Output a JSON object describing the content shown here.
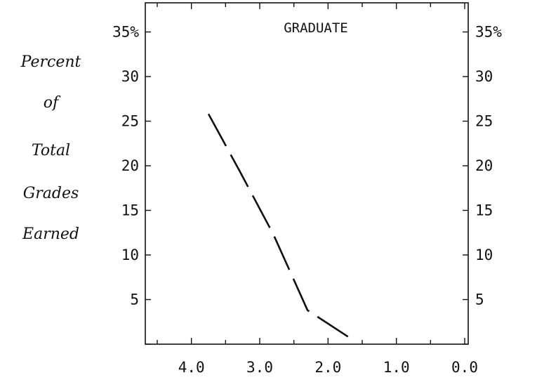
{
  "chart_data": {
    "type": "line",
    "title": "GRADUATE",
    "ylabel_lines": [
      "Percent",
      "of",
      "Total",
      "Grades",
      "Earned"
    ],
    "xlabel": "",
    "xlim": [
      4.5,
      0.0
    ],
    "ylim": [
      0,
      40
    ],
    "x_ticks": [
      {
        "value": 4.0,
        "label": "4.0"
      },
      {
        "value": 3.0,
        "label": "3.0"
      },
      {
        "value": 2.0,
        "label": "2.0"
      },
      {
        "value": 1.0,
        "label": "1.0"
      },
      {
        "value": 0.0,
        "label": "0.0"
      }
    ],
    "y_ticks": [
      {
        "value": 5,
        "label": "5"
      },
      {
        "value": 10,
        "label": "10"
      },
      {
        "value": 15,
        "label": "15"
      },
      {
        "value": 20,
        "label": "20"
      },
      {
        "value": 25,
        "label": "25"
      },
      {
        "value": 30,
        "label": "30"
      },
      {
        "value": 35,
        "label": "35%"
      }
    ],
    "series": [
      {
        "line_style": "dashed",
        "color": "#111111",
        "x": [
          3.75,
          3.3,
          2.8,
          2.3,
          1.7
        ],
        "y": [
          25.8,
          19.5,
          12.3,
          3.8,
          0.8
        ]
      }
    ],
    "grid": false,
    "legend": "none"
  }
}
